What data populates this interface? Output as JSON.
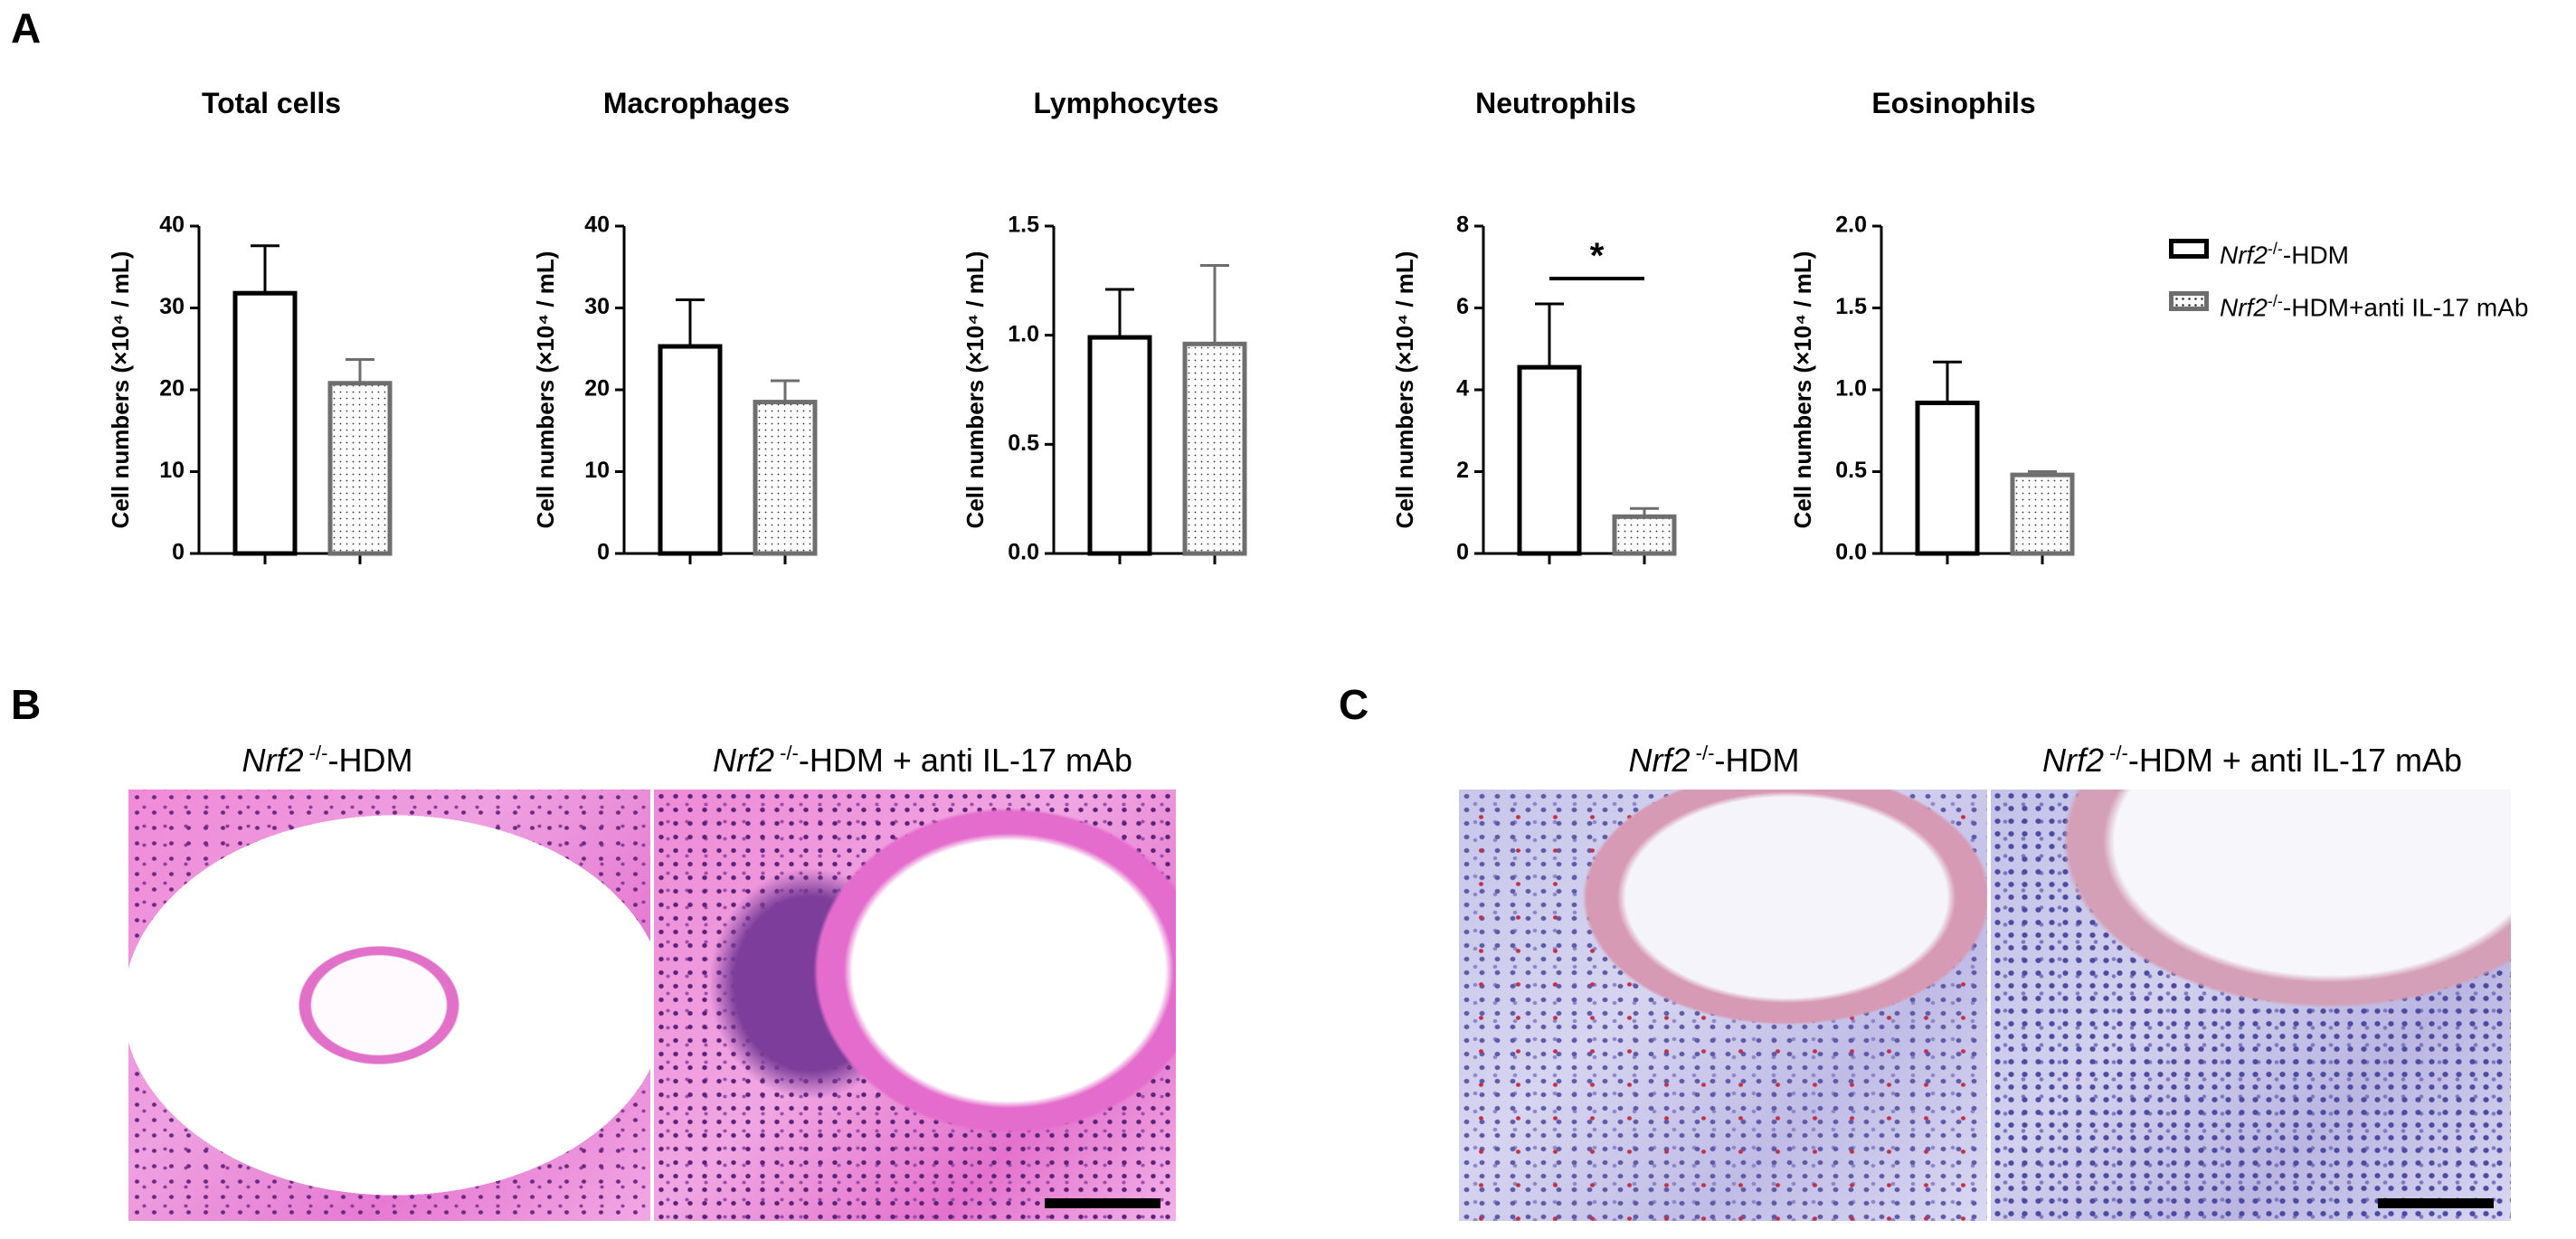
{
  "panels": {
    "a": "A",
    "b": "B",
    "c": "C"
  },
  "chart_data": [
    {
      "type": "bar",
      "title": "Total cells",
      "ylabel": "Cell numbers (×10⁴ / mL)",
      "ylim": [
        0,
        40
      ],
      "yticks": [
        "0",
        "10",
        "20",
        "30",
        "40"
      ],
      "categories": [
        "Nrf2-/--HDM",
        "Nrf2-/--HDM+anti IL-17 mAb"
      ],
      "values": [
        31.8,
        20.8
      ],
      "errors": [
        5.8,
        2.9
      ],
      "significance": ""
    },
    {
      "type": "bar",
      "title": "Macrophages",
      "ylabel": "Cell numbers (×10⁴ / mL)",
      "ylim": [
        0,
        40
      ],
      "yticks": [
        "0",
        "10",
        "20",
        "30",
        "40"
      ],
      "categories": [
        "Nrf2-/--HDM",
        "Nrf2-/--HDM+anti IL-17 mAb"
      ],
      "values": [
        25.3,
        18.5
      ],
      "errors": [
        5.7,
        2.6
      ],
      "significance": ""
    },
    {
      "type": "bar",
      "title": "Lymphocytes",
      "ylabel": "Cell numbers (×10⁴ / mL)",
      "ylim": [
        0,
        1.5
      ],
      "yticks": [
        "0.0",
        "0.5",
        "1.0",
        "1.5"
      ],
      "categories": [
        "Nrf2-/--HDM",
        "Nrf2-/--HDM+anti IL-17 mAb"
      ],
      "values": [
        0.99,
        0.96
      ],
      "errors": [
        0.22,
        0.36
      ],
      "significance": ""
    },
    {
      "type": "bar",
      "title": "Neutrophils",
      "ylabel": "Cell numbers (×10⁴ / mL)",
      "ylim": [
        0,
        8
      ],
      "yticks": [
        "0",
        "2",
        "4",
        "6",
        "8"
      ],
      "categories": [
        "Nrf2-/--HDM",
        "Nrf2-/--HDM+anti IL-17 mAb"
      ],
      "values": [
        4.55,
        0.9
      ],
      "errors": [
        1.55,
        0.2
      ],
      "significance": "*"
    },
    {
      "type": "bar",
      "title": "Eosinophils",
      "ylabel": "Cell numbers (×10⁴ / mL)",
      "ylim": [
        0,
        2.0
      ],
      "yticks": [
        "0.0",
        "0.5",
        "1.0",
        "1.5",
        "2.0"
      ],
      "categories": [
        "Nrf2-/--HDM",
        "Nrf2-/--HDM+anti IL-17 mAb"
      ],
      "values": [
        0.92,
        0.48
      ],
      "errors": [
        0.25,
        0.02
      ],
      "significance": ""
    }
  ],
  "legend": [
    {
      "italic": "Nrf2",
      "sup": "-/-",
      "rest": "-HDM",
      "style": "open",
      "color": "#000000"
    },
    {
      "italic": "Nrf2",
      "sup": "-/-",
      "rest": "-HDM+anti IL-17 mAb",
      "style": "dotted",
      "color": "#6e6e6e"
    }
  ],
  "images": {
    "b_left": {
      "italic": "Nrf2",
      "sup": " -/-",
      "rest": "-HDM"
    },
    "b_right": {
      "italic": "Nrf2",
      "sup": " -/-",
      "rest": "-HDM + anti IL-17 mAb"
    },
    "c_left": {
      "italic": "Nrf2",
      "sup": " -/-",
      "rest": "-HDM"
    },
    "c_right": {
      "italic": "Nrf2",
      "sup": " -/-",
      "rest": "-HDM + anti IL-17 mAb"
    }
  },
  "colors": {
    "group1_edge": "#000000",
    "group2_edge": "#6e6e6e",
    "he_stain": "#e67ad2",
    "ihc_stain": "#c8c6ea"
  }
}
